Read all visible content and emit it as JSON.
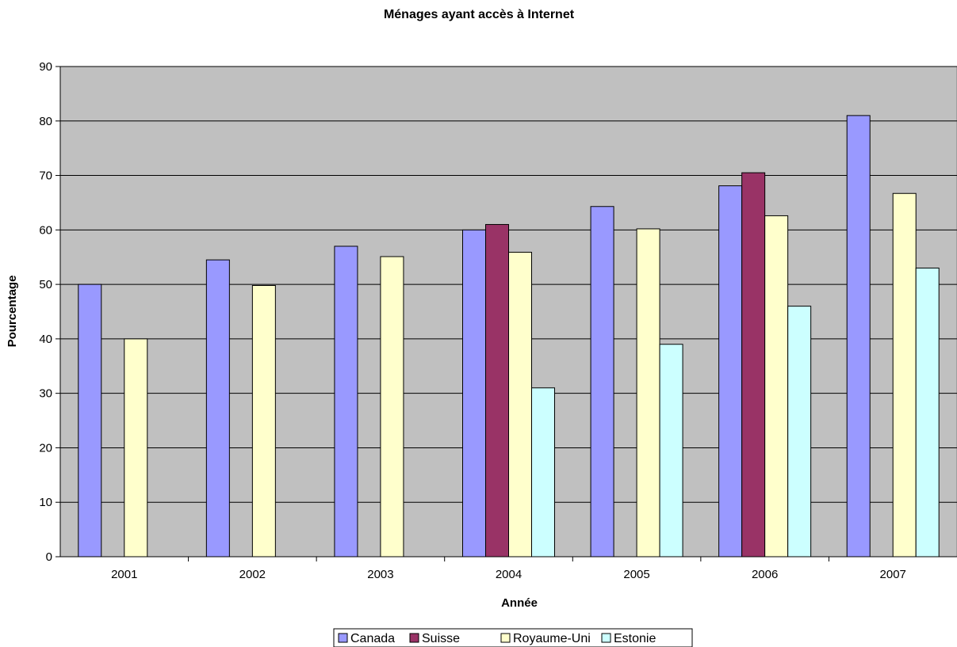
{
  "chart_data": {
    "type": "bar",
    "title": "Ménages ayant accès à Internet",
    "xlabel": "Année",
    "ylabel": "Pourcentage",
    "ylim": [
      0,
      90
    ],
    "yticks": [
      0,
      10,
      20,
      30,
      40,
      50,
      60,
      70,
      80,
      90
    ],
    "grid": true,
    "legend_position": "bottom",
    "plot_background": "#c0c0c0",
    "categories": [
      "2001",
      "2002",
      "2003",
      "2004",
      "2005",
      "2006",
      "2007"
    ],
    "series": [
      {
        "name": "Canada",
        "color": "#9999ff",
        "values": [
          50,
          54.5,
          57,
          60,
          64.3,
          68.1,
          81
        ]
      },
      {
        "name": "Suisse",
        "color": "#993366",
        "values": [
          null,
          null,
          null,
          61,
          null,
          70.5,
          null
        ]
      },
      {
        "name": "Royaume-Uni",
        "color": "#ffffcc",
        "values": [
          40,
          49.8,
          55.1,
          55.9,
          60.2,
          62.6,
          66.7
        ]
      },
      {
        "name": "Estonie",
        "color": "#ccffff",
        "values": [
          null,
          null,
          null,
          31,
          39,
          46,
          53
        ]
      }
    ]
  }
}
